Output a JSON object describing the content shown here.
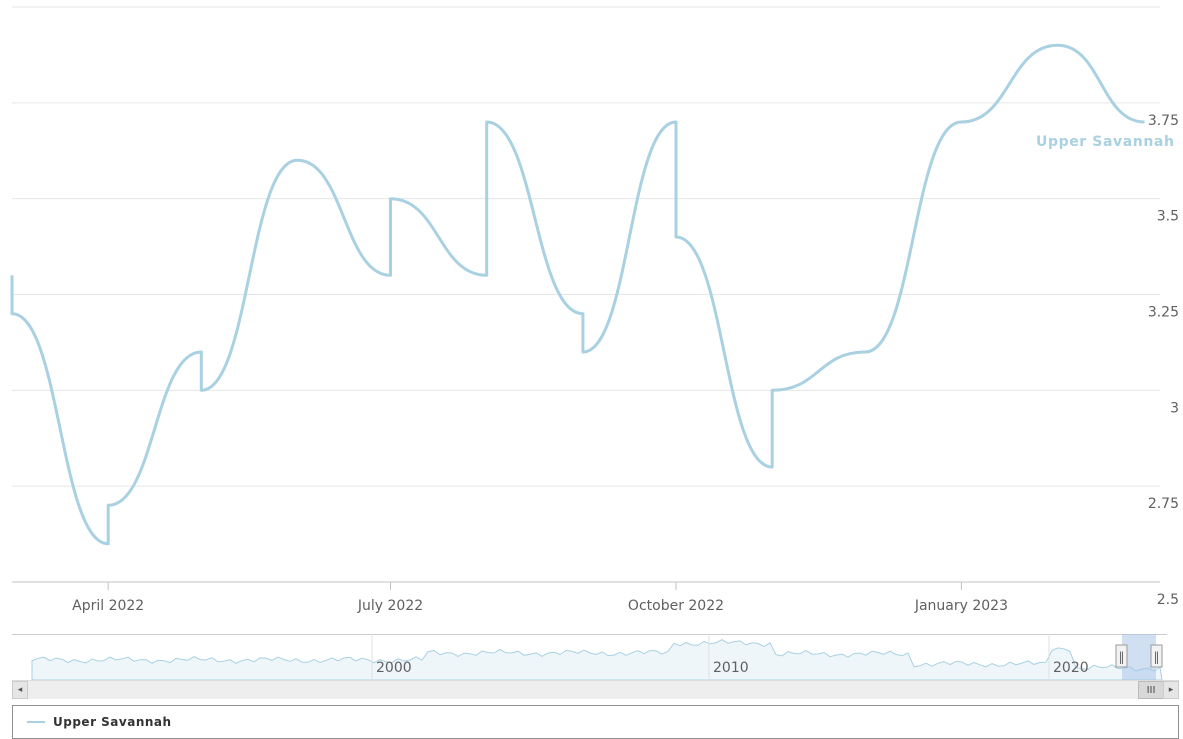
{
  "chart_data": {
    "type": "line",
    "title": "",
    "xlabel": "",
    "ylabel": "",
    "x_ticks": [
      "April 2022",
      "July 2022",
      "October 2022",
      "January 2023"
    ],
    "y_ticks": [
      "2.5",
      "2.75",
      "3",
      "3.25",
      "3.5",
      "3.75"
    ],
    "ylim": [
      2.5,
      4.0
    ],
    "xlim": [
      "2022-03-01",
      "2023-03-06"
    ],
    "grid": "horizontal",
    "legend_placement": "bottom",
    "series": [
      {
        "name": "Upper Savannah",
        "color": "#a9d1e2",
        "points": [
          {
            "x": "2022-03-01",
            "y": 3.3
          },
          {
            "x": "2022-03-01",
            "y": 3.2
          },
          {
            "x": "2022-04-01",
            "y": 2.6
          },
          {
            "x": "2022-04-01",
            "y": 2.7
          },
          {
            "x": "2022-05-01",
            "y": 3.1
          },
          {
            "x": "2022-05-01",
            "y": 3.0
          },
          {
            "x": "2022-06-01",
            "y": 3.6
          },
          {
            "x": "2022-07-01",
            "y": 3.3
          },
          {
            "x": "2022-07-01",
            "y": 3.5
          },
          {
            "x": "2022-08-01",
            "y": 3.3
          },
          {
            "x": "2022-08-01",
            "y": 3.7
          },
          {
            "x": "2022-09-01",
            "y": 3.2
          },
          {
            "x": "2022-09-01",
            "y": 3.1
          },
          {
            "x": "2022-10-01",
            "y": 3.7
          },
          {
            "x": "2022-10-01",
            "y": 3.4
          },
          {
            "x": "2022-11-01",
            "y": 2.8
          },
          {
            "x": "2022-11-01",
            "y": 3.0
          },
          {
            "x": "2022-12-01",
            "y": 3.1
          },
          {
            "x": "2023-01-01",
            "y": 3.7
          },
          {
            "x": "2023-02-01",
            "y": 3.9
          },
          {
            "x": "2023-03-01",
            "y": 3.7
          }
        ]
      }
    ],
    "series_end_label": "Upper Savannah"
  },
  "navigator": {
    "ticks": [
      "2000",
      "2010",
      "2020"
    ]
  },
  "scrollbar": {
    "left_arrow": "◂",
    "right_arrow": "▸",
    "thumb_grip": "III",
    "handle_grip": "‖"
  },
  "legend": {
    "items": [
      {
        "label": "Upper Savannah",
        "color": "#a9d1e2"
      }
    ]
  }
}
